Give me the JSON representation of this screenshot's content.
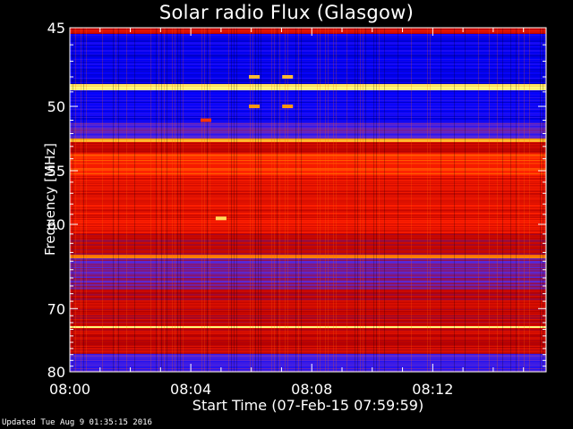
{
  "chart_data": {
    "type": "heatmap",
    "title": "Solar radio Flux (Glasgow)",
    "ylabel": "Frequency [MHz]",
    "xlabel": "Start Time (07-Feb-15 07:59:59)",
    "x_ticks": [
      "08:00",
      "08:04",
      "08:08",
      "08:12"
    ],
    "x_tick_minutes": [
      0,
      4,
      8,
      12
    ],
    "xlim_minutes": [
      0,
      15.75
    ],
    "y_ticks": [
      "45",
      "50",
      "55",
      "60",
      "70",
      "80"
    ],
    "y_tick_values": [
      45,
      50,
      55,
      60,
      70,
      80
    ],
    "ylim_mhz": [
      45,
      80
    ],
    "y_scale": "reciprocal",
    "colormap": [
      "#00005a",
      "#0000ff",
      "#5a2ad8",
      "#b40000",
      "#ff1e00",
      "#ff8c00",
      "#ffff80"
    ],
    "bands": [
      {
        "f_min": 45.0,
        "f_max": 45.4,
        "level": 0.55
      },
      {
        "f_min": 45.4,
        "f_max": 48.5,
        "level": 0.16
      },
      {
        "f_min": 48.5,
        "f_max": 48.9,
        "level": 0.98
      },
      {
        "f_min": 48.9,
        "f_max": 51.2,
        "level": 0.18
      },
      {
        "f_min": 51.2,
        "f_max": 52.4,
        "level": 0.32
      },
      {
        "f_min": 52.4,
        "f_max": 52.7,
        "level": 0.85
      },
      {
        "f_min": 52.7,
        "f_max": 53.6,
        "level": 0.55
      },
      {
        "f_min": 53.6,
        "f_max": 55.5,
        "level": 0.7
      },
      {
        "f_min": 55.5,
        "f_max": 61.0,
        "level": 0.6
      },
      {
        "f_min": 61.0,
        "f_max": 63.3,
        "level": 0.5
      },
      {
        "f_min": 63.3,
        "f_max": 63.7,
        "level": 0.82
      },
      {
        "f_min": 63.7,
        "f_max": 67.5,
        "level": 0.38
      },
      {
        "f_min": 67.5,
        "f_max": 72.6,
        "level": 0.52
      },
      {
        "f_min": 72.6,
        "f_max": 72.9,
        "level": 1.0
      },
      {
        "f_min": 72.9,
        "f_max": 77.0,
        "level": 0.55
      },
      {
        "f_min": 77.0,
        "f_max": 80.0,
        "level": 0.3
      }
    ],
    "bursts": [
      {
        "t_minutes": 6.1,
        "f_mhz": 48.0,
        "level": 0.9
      },
      {
        "t_minutes": 7.2,
        "f_mhz": 48.0,
        "level": 0.9
      },
      {
        "t_minutes": 6.1,
        "f_mhz": 50.0,
        "level": 0.85
      },
      {
        "t_minutes": 7.2,
        "f_mhz": 50.0,
        "level": 0.85
      },
      {
        "t_minutes": 5.0,
        "f_mhz": 59.4,
        "level": 0.95
      },
      {
        "t_minutes": 4.5,
        "f_mhz": 51.0,
        "level": 0.7
      }
    ]
  },
  "footer": "Updated Tue Aug  9 01:35:15 2016"
}
